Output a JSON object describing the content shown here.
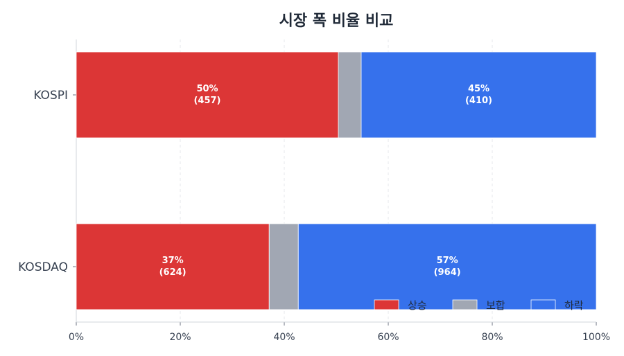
{
  "chart_data": {
    "type": "bar",
    "orientation": "horizontal",
    "stacked": true,
    "title": "시장 폭 비율 비교",
    "categories": [
      "KOSPI",
      "KOSDAQ"
    ],
    "series": [
      {
        "name": "상승",
        "color": "#dc3636",
        "values": [
          50.4,
          37.1
        ],
        "labels": [
          "50%\n(457)",
          "37%\n(624)"
        ]
      },
      {
        "name": "보합",
        "color": "#a1a7b3",
        "values": [
          4.4,
          5.6
        ],
        "labels": [
          "",
          ""
        ]
      },
      {
        "name": "하락",
        "color": "#3671ec",
        "values": [
          45.2,
          57.3
        ],
        "labels": [
          "45%\n(410)",
          "57%\n(964)"
        ]
      }
    ],
    "xlim": [
      0,
      100
    ],
    "xticks": [
      "0%",
      "20%",
      "40%",
      "60%",
      "80%",
      "100%"
    ],
    "grid": true,
    "legend_position": "bottom-right"
  }
}
